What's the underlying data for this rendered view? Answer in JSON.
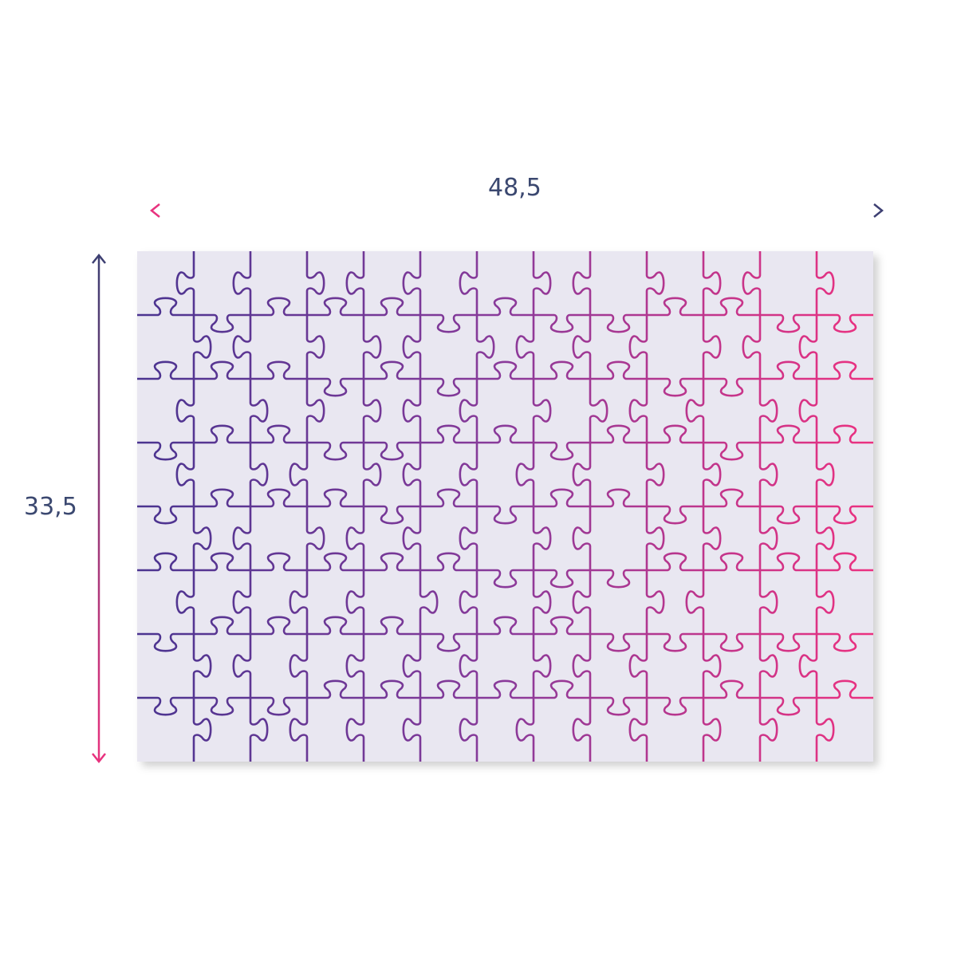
{
  "dimensions": {
    "width_label": "48,5",
    "height_label": "33,5"
  },
  "puzzle": {
    "columns": 13,
    "rows": 8,
    "pieces": 104
  },
  "colors": {
    "navy": "#3d3f72",
    "pink": "#e8327e",
    "puzzle_left": "#4a3490",
    "puzzle_right": "#ec3180",
    "board": "#e9e7f1",
    "label": "#3b4870"
  }
}
